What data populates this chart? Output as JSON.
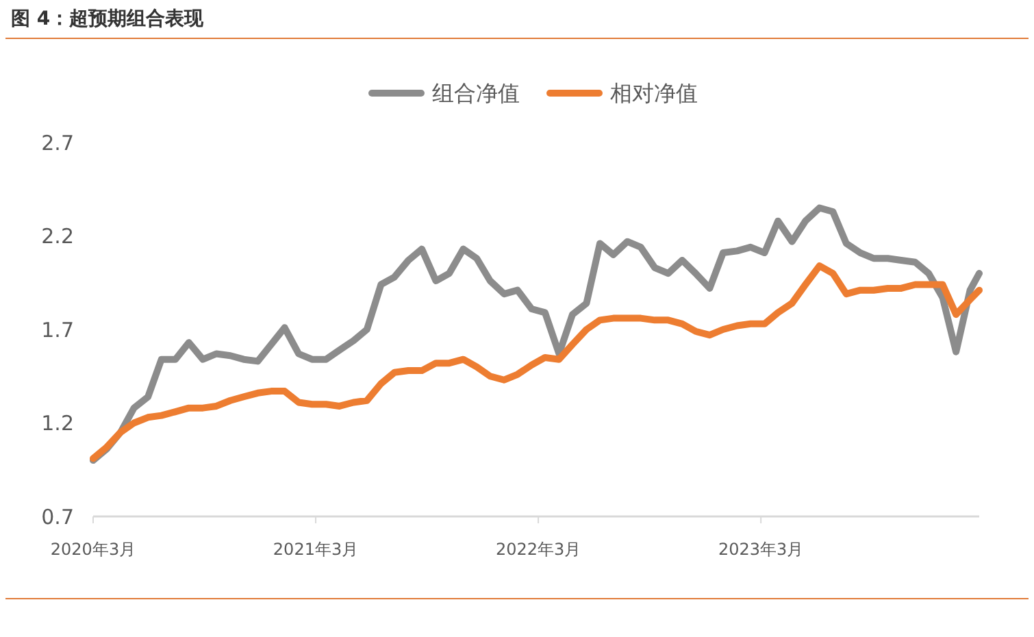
{
  "chart_data": {
    "type": "line",
    "title": "图 4：超预期组合表现",
    "x": [
      "2020-03-01",
      "2020-03-23",
      "2020-04-15",
      "2020-05-07",
      "2020-05-30",
      "2020-06-21",
      "2020-07-14",
      "2020-08-05",
      "2020-08-28",
      "2020-09-19",
      "2020-10-12",
      "2020-11-03",
      "2020-11-26",
      "2020-12-18",
      "2021-01-09",
      "2021-02-01",
      "2021-02-23",
      "2021-03-18",
      "2021-04-09",
      "2021-05-02",
      "2021-05-24",
      "2021-06-16",
      "2021-07-08",
      "2021-07-31",
      "2021-08-22",
      "2021-09-14",
      "2021-10-06",
      "2021-10-29",
      "2021-11-20",
      "2021-12-12",
      "2022-01-04",
      "2022-01-26",
      "2022-02-18",
      "2022-03-12",
      "2022-04-04",
      "2022-04-26",
      "2022-05-19",
      "2022-06-10",
      "2022-07-02",
      "2022-07-25",
      "2022-08-16",
      "2022-09-08",
      "2022-09-30",
      "2022-10-23",
      "2022-11-14",
      "2022-12-07",
      "2022-12-29",
      "2023-01-21",
      "2023-02-12",
      "2023-03-07",
      "2023-03-29",
      "2023-04-21",
      "2023-05-13",
      "2023-06-05",
      "2023-06-27",
      "2023-07-19",
      "2023-08-11",
      "2023-09-02",
      "2023-09-25",
      "2023-10-17",
      "2023-11-09",
      "2023-12-01",
      "2023-12-24",
      "2024-01-15",
      "2024-02-07",
      "2024-02-22"
    ],
    "series": [
      {
        "name": "组合净值",
        "color": "#8c8c8c",
        "values": [
          1.0,
          1.06,
          1.15,
          1.28,
          1.34,
          1.54,
          1.54,
          1.63,
          1.54,
          1.57,
          1.56,
          1.54,
          1.53,
          1.62,
          1.71,
          1.57,
          1.54,
          1.54,
          1.59,
          1.64,
          1.7,
          1.94,
          1.98,
          2.07,
          2.13,
          1.96,
          2.0,
          2.13,
          2.08,
          1.96,
          1.89,
          1.91,
          1.81,
          1.79,
          1.57,
          1.78,
          1.84,
          2.16,
          2.1,
          2.17,
          2.14,
          2.03,
          2.0,
          2.07,
          2.0,
          1.92,
          2.11,
          2.12,
          2.14,
          2.11,
          2.28,
          2.17,
          2.28,
          2.35,
          2.33,
          2.16,
          2.11,
          2.08,
          2.08,
          2.07,
          2.06,
          2.0,
          1.87,
          1.58,
          1.91,
          2.0
        ]
      },
      {
        "name": "相对净值",
        "color": "#ed7d31",
        "values": [
          1.01,
          1.07,
          1.15,
          1.2,
          1.23,
          1.24,
          1.26,
          1.28,
          1.28,
          1.29,
          1.32,
          1.34,
          1.36,
          1.37,
          1.37,
          1.31,
          1.3,
          1.3,
          1.29,
          1.31,
          1.32,
          1.41,
          1.47,
          1.48,
          1.48,
          1.52,
          1.52,
          1.54,
          1.5,
          1.45,
          1.43,
          1.46,
          1.51,
          1.55,
          1.54,
          1.62,
          1.7,
          1.75,
          1.76,
          1.76,
          1.76,
          1.75,
          1.75,
          1.73,
          1.69,
          1.67,
          1.7,
          1.72,
          1.73,
          1.73,
          1.79,
          1.84,
          1.94,
          2.04,
          2.0,
          1.89,
          1.91,
          1.91,
          1.92,
          1.92,
          1.94,
          1.94,
          1.94,
          1.78,
          1.86,
          1.91
        ]
      }
    ],
    "xlim": [
      "2020-03-01",
      "2024-02-22"
    ],
    "xticks": [
      {
        "value": "2020-03-01",
        "label": "2020年3月"
      },
      {
        "value": "2021-03-01",
        "label": "2021年3月"
      },
      {
        "value": "2022-03-01",
        "label": "2022年3月"
      },
      {
        "value": "2023-03-01",
        "label": "2023年3月"
      }
    ],
    "ylim": [
      0.7,
      2.7
    ],
    "yticks": [
      0.7,
      1.2,
      1.7,
      2.2,
      2.7
    ],
    "grid": false,
    "legend": "top",
    "marker": "none",
    "line_style": "solid"
  }
}
